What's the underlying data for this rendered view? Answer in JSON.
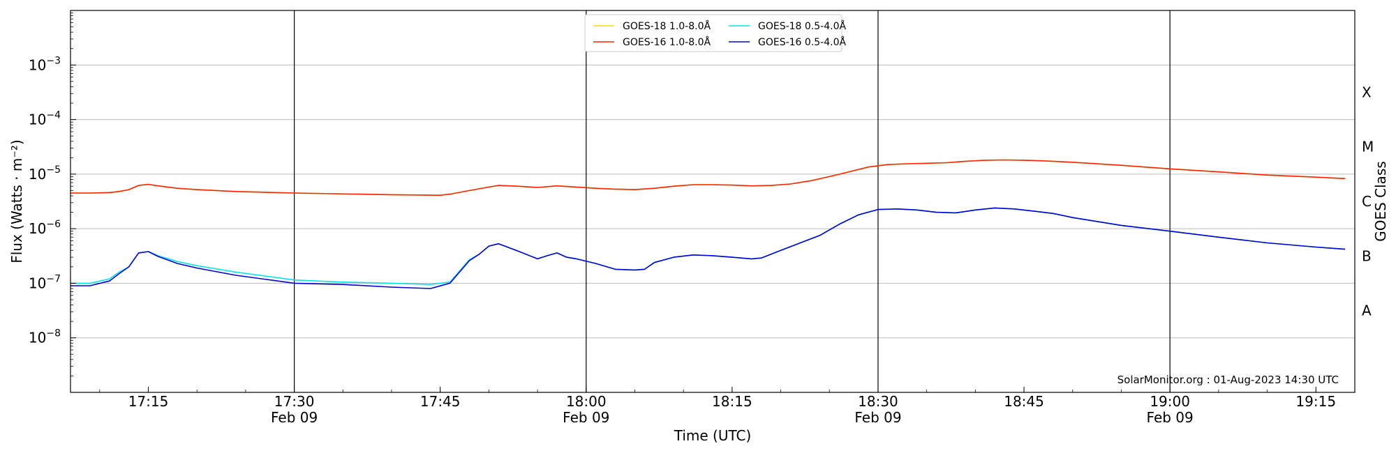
{
  "chart_data": {
    "type": "line",
    "xlabel": "Time (UTC)",
    "ylabel": "Flux (Watts · m⁻²)",
    "right_label": "GOES Class",
    "credit": "SolarMonitor.org : 01-Aug-2023 14:30 UTC",
    "y_scale": "log",
    "ylim": [
      1e-09,
      0.01
    ],
    "xlim": [
      "17:07",
      "19:19"
    ],
    "grid": "horizontal",
    "legend_position": "top-center",
    "y_ticks": [
      {
        "value": 1e-08,
        "label": "10",
        "exp": "−8"
      },
      {
        "value": 1e-07,
        "label": "10",
        "exp": "−7"
      },
      {
        "value": 1e-06,
        "label": "10",
        "exp": "−6"
      },
      {
        "value": 1e-05,
        "label": "10",
        "exp": "−5"
      },
      {
        "value": 0.0001,
        "label": "10",
        "exp": "−4"
      },
      {
        "value": 0.001,
        "label": "10",
        "exp": "−3"
      }
    ],
    "x_ticks": [
      {
        "time": "17:15",
        "label": "17:15",
        "date": ""
      },
      {
        "time": "17:30",
        "label": "17:30",
        "date": "Feb 09"
      },
      {
        "time": "17:45",
        "label": "17:45",
        "date": ""
      },
      {
        "time": "18:00",
        "label": "18:00",
        "date": "Feb 09"
      },
      {
        "time": "18:15",
        "label": "18:15",
        "date": ""
      },
      {
        "time": "18:30",
        "label": "18:30",
        "date": "Feb 09"
      },
      {
        "time": "18:45",
        "label": "18:45",
        "date": ""
      },
      {
        "time": "19:00",
        "label": "19:00",
        "date": "Feb 09"
      },
      {
        "time": "19:15",
        "label": "19:15",
        "date": ""
      }
    ],
    "vertical_lines": [
      "17:30",
      "18:00",
      "18:30",
      "19:00"
    ],
    "goes_classes": [
      {
        "label": "A",
        "value": 3.16e-08
      },
      {
        "label": "B",
        "value": 3.16e-07
      },
      {
        "label": "C",
        "value": 3.16e-06
      },
      {
        "label": "M",
        "value": 3.16e-05
      },
      {
        "label": "X",
        "value": 0.000316
      }
    ],
    "series": [
      {
        "name": "GOES-18 1.0-8.0Å",
        "color": "#ffd700",
        "x": [
          "17:07",
          "17:09",
          "17:11",
          "17:12",
          "17:13",
          "17:14",
          "17:15",
          "17:16",
          "17:18",
          "17:20",
          "17:24",
          "17:30",
          "17:40",
          "17:45",
          "17:46",
          "17:48",
          "17:50",
          "17:51",
          "17:53",
          "17:55",
          "17:57",
          "17:59",
          "18:01",
          "18:03",
          "18:05",
          "18:07",
          "18:09",
          "18:11",
          "18:13",
          "18:15",
          "18:17",
          "18:19",
          "18:21",
          "18:23",
          "18:25",
          "18:27",
          "18:29",
          "18:31",
          "18:33",
          "18:35",
          "18:37",
          "18:39",
          "18:41",
          "18:43",
          "18:45",
          "18:47",
          "18:50",
          "18:55",
          "19:00",
          "19:05",
          "19:10",
          "19:15",
          "19:18"
        ],
        "y": [
          4.5e-06,
          4.5e-06,
          4.6e-06,
          4.8e-06,
          5.2e-06,
          6.2e-06,
          6.5e-06,
          6.1e-06,
          5.5e-06,
          5.2e-06,
          4.8e-06,
          4.5e-06,
          4.2e-06,
          4.1e-06,
          4.3e-06,
          5e-06,
          5.8e-06,
          6.2e-06,
          6e-06,
          5.7e-06,
          6.1e-06,
          5.8e-06,
          5.5e-06,
          5.3e-06,
          5.2e-06,
          5.5e-06,
          6e-06,
          6.4e-06,
          6.4e-06,
          6.3e-06,
          6.1e-06,
          6.2e-06,
          6.6e-06,
          7.5e-06,
          9e-06,
          1.1e-05,
          1.35e-05,
          1.5e-05,
          1.55e-05,
          1.58e-05,
          1.62e-05,
          1.72e-05,
          1.8e-05,
          1.82e-05,
          1.8e-05,
          1.75e-05,
          1.65e-05,
          1.45e-05,
          1.25e-05,
          1.1e-05,
          9.6e-06,
          8.8e-06,
          8.3e-06
        ]
      },
      {
        "name": "GOES-16 1.0-8.0Å",
        "color": "#ff2200",
        "x": [
          "17:07",
          "17:09",
          "17:11",
          "17:12",
          "17:13",
          "17:14",
          "17:15",
          "17:16",
          "17:18",
          "17:20",
          "17:24",
          "17:30",
          "17:40",
          "17:45",
          "17:46",
          "17:48",
          "17:50",
          "17:51",
          "17:53",
          "17:55",
          "17:57",
          "17:59",
          "18:01",
          "18:03",
          "18:05",
          "18:07",
          "18:09",
          "18:11",
          "18:13",
          "18:15",
          "18:17",
          "18:19",
          "18:21",
          "18:23",
          "18:25",
          "18:27",
          "18:29",
          "18:31",
          "18:33",
          "18:35",
          "18:37",
          "18:39",
          "18:41",
          "18:43",
          "18:45",
          "18:47",
          "18:50",
          "18:55",
          "19:00",
          "19:05",
          "19:10",
          "19:15",
          "19:18"
        ],
        "y": [
          4.5e-06,
          4.5e-06,
          4.6e-06,
          4.8e-06,
          5.2e-06,
          6.2e-06,
          6.5e-06,
          6.1e-06,
          5.5e-06,
          5.2e-06,
          4.8e-06,
          4.5e-06,
          4.2e-06,
          4.1e-06,
          4.3e-06,
          5e-06,
          5.8e-06,
          6.2e-06,
          6e-06,
          5.7e-06,
          6.1e-06,
          5.8e-06,
          5.5e-06,
          5.3e-06,
          5.2e-06,
          5.5e-06,
          6e-06,
          6.4e-06,
          6.4e-06,
          6.3e-06,
          6.1e-06,
          6.2e-06,
          6.6e-06,
          7.5e-06,
          9e-06,
          1.1e-05,
          1.35e-05,
          1.5e-05,
          1.55e-05,
          1.58e-05,
          1.62e-05,
          1.72e-05,
          1.8e-05,
          1.82e-05,
          1.8e-05,
          1.75e-05,
          1.65e-05,
          1.45e-05,
          1.25e-05,
          1.1e-05,
          9.6e-06,
          8.8e-06,
          8.3e-06
        ]
      },
      {
        "name": "GOES-18 0.5-4.0Å",
        "color": "#00e5ee",
        "x": [
          "17:07",
          "17:09",
          "17:11",
          "17:12",
          "17:13",
          "17:14",
          "17:15",
          "17:16",
          "17:18",
          "17:20",
          "17:24",
          "17:30",
          "17:35",
          "17:40",
          "17:44",
          "17:46",
          "17:48",
          "17:49",
          "17:50",
          "17:51",
          "17:53",
          "17:55",
          "17:56",
          "17:57",
          "17:58",
          "17:59",
          "18:01",
          "18:03",
          "18:05",
          "18:06",
          "18:07",
          "18:09",
          "18:11",
          "18:13",
          "18:15",
          "18:17",
          "18:18",
          "18:20",
          "18:22",
          "18:24",
          "18:26",
          "18:28",
          "18:30",
          "18:32",
          "18:34",
          "18:36",
          "18:38",
          "18:40",
          "18:42",
          "18:44",
          "18:46",
          "18:48",
          "18:50",
          "18:55",
          "19:00",
          "19:05",
          "19:10",
          "19:15",
          "19:18"
        ],
        "y": [
          1e-07,
          1e-07,
          1.2e-07,
          1.6e-07,
          2e-07,
          3.6e-07,
          3.8e-07,
          3.2e-07,
          2.5e-07,
          2.1e-07,
          1.6e-07,
          1.15e-07,
          1.05e-07,
          1e-07,
          9.5e-08,
          1.05e-07,
          2.7e-07,
          3.4e-07,
          4.8e-07,
          5.3e-07,
          3.9e-07,
          2.8e-07,
          3.2e-07,
          3.6e-07,
          3e-07,
          2.8e-07,
          2.3e-07,
          1.8e-07,
          1.75e-07,
          1.8e-07,
          2.4e-07,
          3e-07,
          3.3e-07,
          3.2e-07,
          3e-07,
          2.8e-07,
          2.9e-07,
          4e-07,
          5.5e-07,
          7.5e-07,
          1.2e-06,
          1.8e-06,
          2.25e-06,
          2.3e-06,
          2.2e-06,
          2e-06,
          1.95e-06,
          2.2e-06,
          2.4e-06,
          2.3e-06,
          2.1e-06,
          1.9e-06,
          1.6e-06,
          1.15e-06,
          9e-07,
          7e-07,
          5.5e-07,
          4.6e-07,
          4.2e-07
        ]
      },
      {
        "name": "GOES-16 0.5-4.0Å",
        "color": "#0000dd",
        "x": [
          "17:07",
          "17:09",
          "17:11",
          "17:12",
          "17:13",
          "17:14",
          "17:15",
          "17:16",
          "17:18",
          "17:20",
          "17:24",
          "17:30",
          "17:35",
          "17:40",
          "17:44",
          "17:46",
          "17:48",
          "17:49",
          "17:50",
          "17:51",
          "17:53",
          "17:55",
          "17:56",
          "17:57",
          "17:58",
          "17:59",
          "18:01",
          "18:03",
          "18:05",
          "18:06",
          "18:07",
          "18:09",
          "18:11",
          "18:13",
          "18:15",
          "18:17",
          "18:18",
          "18:20",
          "18:22",
          "18:24",
          "18:26",
          "18:28",
          "18:30",
          "18:32",
          "18:34",
          "18:36",
          "18:38",
          "18:40",
          "18:42",
          "18:44",
          "18:46",
          "18:48",
          "18:50",
          "18:55",
          "19:00",
          "19:05",
          "19:10",
          "19:15",
          "19:18"
        ],
        "y": [
          9e-08,
          9e-08,
          1.1e-07,
          1.5e-07,
          2e-07,
          3.6e-07,
          3.8e-07,
          3.1e-07,
          2.3e-07,
          1.9e-07,
          1.4e-07,
          1e-07,
          9.5e-08,
          8.5e-08,
          8e-08,
          1e-07,
          2.6e-07,
          3.4e-07,
          4.8e-07,
          5.3e-07,
          3.9e-07,
          2.8e-07,
          3.2e-07,
          3.6e-07,
          3e-07,
          2.8e-07,
          2.3e-07,
          1.8e-07,
          1.75e-07,
          1.8e-07,
          2.4e-07,
          3e-07,
          3.3e-07,
          3.2e-07,
          3e-07,
          2.8e-07,
          2.9e-07,
          4e-07,
          5.5e-07,
          7.5e-07,
          1.2e-06,
          1.8e-06,
          2.25e-06,
          2.3e-06,
          2.2e-06,
          2e-06,
          1.95e-06,
          2.2e-06,
          2.4e-06,
          2.3e-06,
          2.1e-06,
          1.9e-06,
          1.6e-06,
          1.15e-06,
          9e-07,
          7e-07,
          5.5e-07,
          4.6e-07,
          4.2e-07
        ]
      }
    ]
  }
}
